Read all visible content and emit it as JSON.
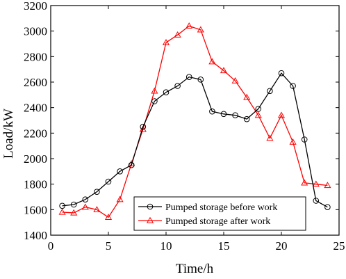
{
  "chart_data": {
    "type": "line",
    "title": "",
    "xlabel": "Time/h",
    "ylabel": "Load/kW",
    "xlim": [
      0,
      25
    ],
    "ylim": [
      1400,
      3200
    ],
    "xticks": [
      0,
      5,
      10,
      15,
      20,
      25
    ],
    "yticks": [
      1400,
      1600,
      1800,
      2000,
      2200,
      2400,
      2600,
      2800,
      3000,
      3200
    ],
    "grid": false,
    "legend_position": "bottom-right",
    "x": [
      1,
      2,
      3,
      4,
      5,
      6,
      7,
      8,
      9,
      10,
      11,
      12,
      13,
      14,
      15,
      16,
      17,
      18,
      19,
      20,
      21,
      22,
      23,
      24
    ],
    "series": [
      {
        "name": "Pumped storage before work",
        "color": "#000000",
        "marker": "circle",
        "values": [
          1630,
          1640,
          1680,
          1740,
          1820,
          1900,
          1950,
          2250,
          2450,
          2520,
          2570,
          2640,
          2620,
          2370,
          2350,
          2340,
          2310,
          2390,
          2530,
          2670,
          2570,
          2150,
          1670,
          1620
        ]
      },
      {
        "name": "Pumped storage after work",
        "color": "#ff0000",
        "marker": "triangle",
        "values": [
          1580,
          1575,
          1620,
          1600,
          1540,
          1680,
          1960,
          2230,
          2530,
          2910,
          2970,
          3040,
          3010,
          2760,
          2690,
          2610,
          2480,
          2340,
          2160,
          2340,
          2130,
          1810,
          1800,
          1790
        ]
      }
    ]
  }
}
